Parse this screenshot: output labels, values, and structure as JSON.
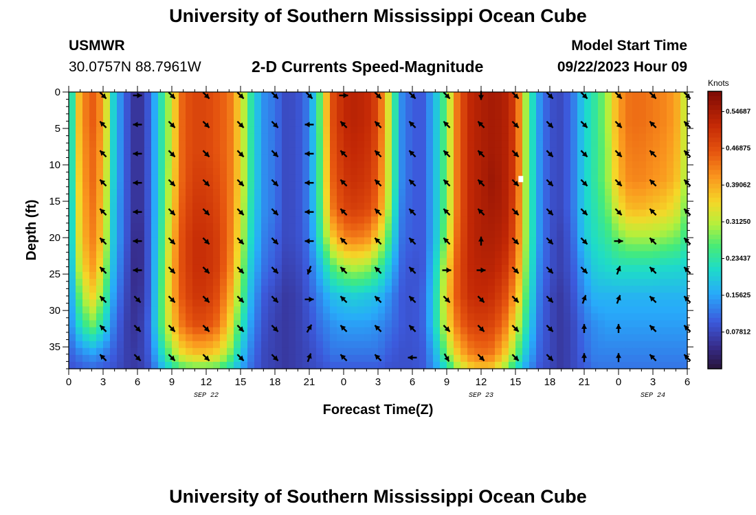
{
  "header": {
    "title": "University of Southern Mississippi Ocean Cube",
    "station": "USMWR",
    "coordinates": "30.0757N  88.7961W",
    "subtitle": "2-D Currents Speed-Magnitude",
    "start_label": "Model Start Time",
    "start_value": "09/22/2023 Hour 09"
  },
  "footer": {
    "title": "University of Southern Mississippi Ocean Cube"
  },
  "chart_data": {
    "type": "heatmap",
    "title": "2-D Currents Speed-Magnitude",
    "xlabel": "Forecast Time(Z)",
    "ylabel": "Depth (ft)",
    "x_range_hours": [
      0,
      54
    ],
    "ylim": [
      0,
      38
    ],
    "y_inverted": true,
    "x_tick_labels": [
      "0",
      "3",
      "6",
      "9",
      "12",
      "15",
      "18",
      "21",
      "0",
      "3",
      "6",
      "9",
      "12",
      "15",
      "18",
      "21",
      "0",
      "3",
      "6"
    ],
    "date_labels": [
      {
        "label": "SEP 22",
        "hour": 12
      },
      {
        "label": "SEP 23",
        "hour": 36
      },
      {
        "label": "SEP 24",
        "hour": 51
      }
    ],
    "y_ticks": [
      0,
      5,
      10,
      15,
      20,
      25,
      30,
      35
    ],
    "colorbar": {
      "unit": "Knots",
      "min": 0,
      "max": 0.59,
      "tick_labels": [
        "0.54687",
        "0.46875",
        "0.39062",
        "0.31250",
        "0.23437",
        "0.15625",
        "0.07812"
      ],
      "tick_values": [
        0.54687,
        0.46875,
        0.39062,
        0.3125,
        0.23437,
        0.15625,
        0.07812
      ]
    },
    "depths_ft": [
      0,
      4,
      8,
      12,
      16,
      20,
      24,
      28,
      32,
      36,
      38
    ],
    "speed_hours": [
      0,
      1,
      2,
      3,
      4,
      5,
      6,
      7,
      8,
      9,
      10,
      11,
      12,
      13,
      14,
      15,
      16,
      17,
      18,
      19,
      20,
      21,
      22,
      23,
      24,
      25,
      26,
      27,
      28,
      29,
      30,
      31,
      32,
      33,
      34,
      35,
      36,
      37,
      38,
      39,
      40,
      41,
      42,
      43,
      44,
      45,
      46,
      47,
      48,
      49,
      50,
      51,
      52,
      53,
      54
    ],
    "speed_knots": [
      [
        0.16,
        0.4,
        0.46,
        0.4,
        0.18,
        0.1,
        0.04,
        0.1,
        0.22,
        0.33,
        0.46,
        0.48,
        0.48,
        0.46,
        0.44,
        0.35,
        0.22,
        0.14,
        0.12,
        0.08,
        0.09,
        0.13,
        0.28,
        0.47,
        0.52,
        0.53,
        0.52,
        0.48,
        0.32,
        0.14,
        0.1,
        0.1,
        0.18,
        0.28,
        0.45,
        0.52,
        0.54,
        0.55,
        0.54,
        0.49,
        0.28,
        0.15,
        0.09,
        0.08,
        0.12,
        0.2,
        0.24,
        0.3,
        0.4,
        0.44,
        0.44,
        0.43,
        0.42,
        0.4,
        0.3
      ],
      [
        0.16,
        0.4,
        0.46,
        0.4,
        0.18,
        0.1,
        0.04,
        0.1,
        0.22,
        0.33,
        0.46,
        0.48,
        0.48,
        0.46,
        0.44,
        0.35,
        0.22,
        0.14,
        0.12,
        0.08,
        0.09,
        0.13,
        0.28,
        0.47,
        0.52,
        0.53,
        0.52,
        0.48,
        0.32,
        0.14,
        0.1,
        0.1,
        0.18,
        0.28,
        0.45,
        0.52,
        0.54,
        0.55,
        0.54,
        0.49,
        0.28,
        0.15,
        0.09,
        0.08,
        0.12,
        0.2,
        0.24,
        0.3,
        0.4,
        0.44,
        0.44,
        0.43,
        0.42,
        0.4,
        0.3
      ],
      [
        0.16,
        0.39,
        0.45,
        0.39,
        0.18,
        0.1,
        0.04,
        0.1,
        0.22,
        0.33,
        0.46,
        0.48,
        0.48,
        0.46,
        0.44,
        0.35,
        0.22,
        0.14,
        0.12,
        0.08,
        0.09,
        0.13,
        0.27,
        0.46,
        0.51,
        0.52,
        0.51,
        0.47,
        0.31,
        0.14,
        0.1,
        0.1,
        0.18,
        0.28,
        0.45,
        0.52,
        0.54,
        0.55,
        0.54,
        0.49,
        0.28,
        0.15,
        0.09,
        0.08,
        0.12,
        0.2,
        0.24,
        0.29,
        0.39,
        0.43,
        0.43,
        0.42,
        0.41,
        0.39,
        0.3
      ],
      [
        0.16,
        0.38,
        0.45,
        0.38,
        0.18,
        0.1,
        0.04,
        0.1,
        0.22,
        0.34,
        0.46,
        0.49,
        0.49,
        0.47,
        0.44,
        0.35,
        0.22,
        0.14,
        0.12,
        0.08,
        0.09,
        0.13,
        0.27,
        0.45,
        0.5,
        0.51,
        0.5,
        0.46,
        0.31,
        0.14,
        0.1,
        0.1,
        0.18,
        0.28,
        0.45,
        0.52,
        0.54,
        0.56,
        0.54,
        0.49,
        0.28,
        0.15,
        0.09,
        0.08,
        0.12,
        0.2,
        0.24,
        0.29,
        0.38,
        0.42,
        0.42,
        0.41,
        0.4,
        0.38,
        0.29
      ],
      [
        0.15,
        0.37,
        0.44,
        0.37,
        0.17,
        0.1,
        0.04,
        0.1,
        0.22,
        0.35,
        0.47,
        0.5,
        0.5,
        0.48,
        0.44,
        0.34,
        0.21,
        0.14,
        0.12,
        0.08,
        0.09,
        0.13,
        0.26,
        0.43,
        0.48,
        0.49,
        0.48,
        0.44,
        0.29,
        0.13,
        0.1,
        0.1,
        0.18,
        0.28,
        0.45,
        0.52,
        0.54,
        0.55,
        0.54,
        0.48,
        0.28,
        0.15,
        0.09,
        0.08,
        0.12,
        0.2,
        0.23,
        0.27,
        0.34,
        0.38,
        0.38,
        0.37,
        0.36,
        0.34,
        0.27
      ],
      [
        0.15,
        0.36,
        0.43,
        0.36,
        0.17,
        0.1,
        0.03,
        0.1,
        0.23,
        0.37,
        0.48,
        0.51,
        0.51,
        0.49,
        0.44,
        0.33,
        0.2,
        0.13,
        0.11,
        0.08,
        0.09,
        0.12,
        0.24,
        0.36,
        0.42,
        0.43,
        0.42,
        0.36,
        0.25,
        0.12,
        0.1,
        0.1,
        0.18,
        0.3,
        0.46,
        0.52,
        0.54,
        0.54,
        0.53,
        0.47,
        0.28,
        0.15,
        0.09,
        0.07,
        0.11,
        0.19,
        0.22,
        0.24,
        0.28,
        0.3,
        0.3,
        0.3,
        0.29,
        0.28,
        0.24
      ],
      [
        0.14,
        0.33,
        0.41,
        0.33,
        0.16,
        0.09,
        0.03,
        0.1,
        0.24,
        0.38,
        0.48,
        0.51,
        0.51,
        0.49,
        0.43,
        0.31,
        0.18,
        0.12,
        0.1,
        0.07,
        0.08,
        0.11,
        0.18,
        0.26,
        0.3,
        0.31,
        0.3,
        0.26,
        0.19,
        0.11,
        0.09,
        0.1,
        0.2,
        0.34,
        0.47,
        0.52,
        0.53,
        0.53,
        0.51,
        0.44,
        0.27,
        0.14,
        0.09,
        0.07,
        0.1,
        0.16,
        0.2,
        0.21,
        0.22,
        0.22,
        0.22,
        0.22,
        0.21,
        0.21,
        0.2
      ],
      [
        0.13,
        0.28,
        0.36,
        0.28,
        0.14,
        0.08,
        0.04,
        0.1,
        0.25,
        0.38,
        0.47,
        0.5,
        0.5,
        0.47,
        0.4,
        0.28,
        0.16,
        0.1,
        0.08,
        0.06,
        0.07,
        0.1,
        0.14,
        0.18,
        0.19,
        0.2,
        0.19,
        0.18,
        0.14,
        0.1,
        0.09,
        0.11,
        0.21,
        0.36,
        0.47,
        0.51,
        0.52,
        0.51,
        0.48,
        0.4,
        0.25,
        0.13,
        0.08,
        0.06,
        0.09,
        0.14,
        0.17,
        0.17,
        0.17,
        0.17,
        0.17,
        0.17,
        0.17,
        0.17,
        0.17
      ],
      [
        0.12,
        0.22,
        0.28,
        0.22,
        0.12,
        0.07,
        0.05,
        0.11,
        0.25,
        0.36,
        0.44,
        0.47,
        0.47,
        0.44,
        0.36,
        0.24,
        0.14,
        0.09,
        0.07,
        0.06,
        0.07,
        0.09,
        0.12,
        0.14,
        0.15,
        0.15,
        0.15,
        0.14,
        0.12,
        0.1,
        0.09,
        0.11,
        0.21,
        0.34,
        0.44,
        0.48,
        0.49,
        0.48,
        0.44,
        0.34,
        0.22,
        0.12,
        0.08,
        0.06,
        0.08,
        0.12,
        0.14,
        0.15,
        0.15,
        0.15,
        0.15,
        0.15,
        0.15,
        0.15,
        0.15
      ],
      [
        0.1,
        0.13,
        0.15,
        0.13,
        0.1,
        0.07,
        0.06,
        0.1,
        0.2,
        0.29,
        0.35,
        0.37,
        0.37,
        0.35,
        0.29,
        0.19,
        0.12,
        0.08,
        0.07,
        0.06,
        0.07,
        0.08,
        0.1,
        0.12,
        0.12,
        0.12,
        0.12,
        0.12,
        0.1,
        0.09,
        0.09,
        0.1,
        0.17,
        0.28,
        0.37,
        0.42,
        0.44,
        0.43,
        0.37,
        0.28,
        0.18,
        0.11,
        0.08,
        0.06,
        0.08,
        0.11,
        0.13,
        0.13,
        0.13,
        0.13,
        0.13,
        0.13,
        0.13,
        0.13,
        0.13
      ],
      [
        0.09,
        0.1,
        0.11,
        0.1,
        0.09,
        0.07,
        0.06,
        0.09,
        0.16,
        0.22,
        0.26,
        0.27,
        0.27,
        0.26,
        0.22,
        0.16,
        0.11,
        0.08,
        0.07,
        0.06,
        0.07,
        0.08,
        0.09,
        0.1,
        0.1,
        0.1,
        0.1,
        0.1,
        0.09,
        0.09,
        0.09,
        0.1,
        0.15,
        0.22,
        0.3,
        0.35,
        0.37,
        0.36,
        0.3,
        0.22,
        0.15,
        0.1,
        0.08,
        0.06,
        0.08,
        0.1,
        0.12,
        0.12,
        0.12,
        0.12,
        0.12,
        0.12,
        0.12,
        0.12,
        0.12
      ]
    ],
    "vector_hours": [
      3,
      6,
      9,
      12,
      15,
      18,
      21,
      24,
      27,
      30,
      33,
      36,
      39,
      42,
      45,
      48,
      51,
      54
    ],
    "vector_depths_ft": [
      0,
      4,
      8,
      12,
      16,
      20,
      24,
      28,
      32,
      36
    ],
    "vector_dir_deg": [
      [
        135,
        90,
        135,
        135,
        135,
        135,
        135,
        90,
        135,
        135,
        135,
        180,
        135,
        135,
        135,
        135,
        135,
        135
      ],
      [
        315,
        270,
        135,
        135,
        135,
        135,
        270,
        315,
        315,
        315,
        315,
        315,
        135,
        135,
        135,
        135,
        315,
        315
      ],
      [
        315,
        270,
        135,
        135,
        135,
        135,
        270,
        315,
        315,
        315,
        315,
        315,
        135,
        135,
        135,
        135,
        315,
        315
      ],
      [
        315,
        270,
        135,
        135,
        135,
        135,
        270,
        315,
        315,
        315,
        315,
        315,
        135,
        135,
        135,
        135,
        315,
        315
      ],
      [
        315,
        270,
        135,
        135,
        135,
        135,
        270,
        315,
        315,
        315,
        315,
        315,
        135,
        135,
        135,
        135,
        315,
        315
      ],
      [
        315,
        270,
        135,
        135,
        135,
        135,
        270,
        315,
        315,
        315,
        315,
        0,
        135,
        135,
        135,
        90,
        315,
        315
      ],
      [
        315,
        270,
        135,
        135,
        135,
        135,
        200,
        315,
        315,
        315,
        90,
        90,
        135,
        135,
        135,
        20,
        315,
        315
      ],
      [
        315,
        135,
        135,
        135,
        135,
        135,
        90,
        315,
        315,
        315,
        135,
        135,
        135,
        135,
        20,
        20,
        315,
        315
      ],
      [
        315,
        135,
        135,
        135,
        135,
        135,
        30,
        315,
        315,
        315,
        135,
        135,
        135,
        135,
        0,
        0,
        315,
        315
      ],
      [
        315,
        135,
        135,
        135,
        135,
        135,
        20,
        315,
        315,
        270,
        150,
        135,
        135,
        135,
        0,
        0,
        315,
        315
      ]
    ],
    "max_marker": {
      "hour": 39.5,
      "depth_ft": 12
    }
  }
}
